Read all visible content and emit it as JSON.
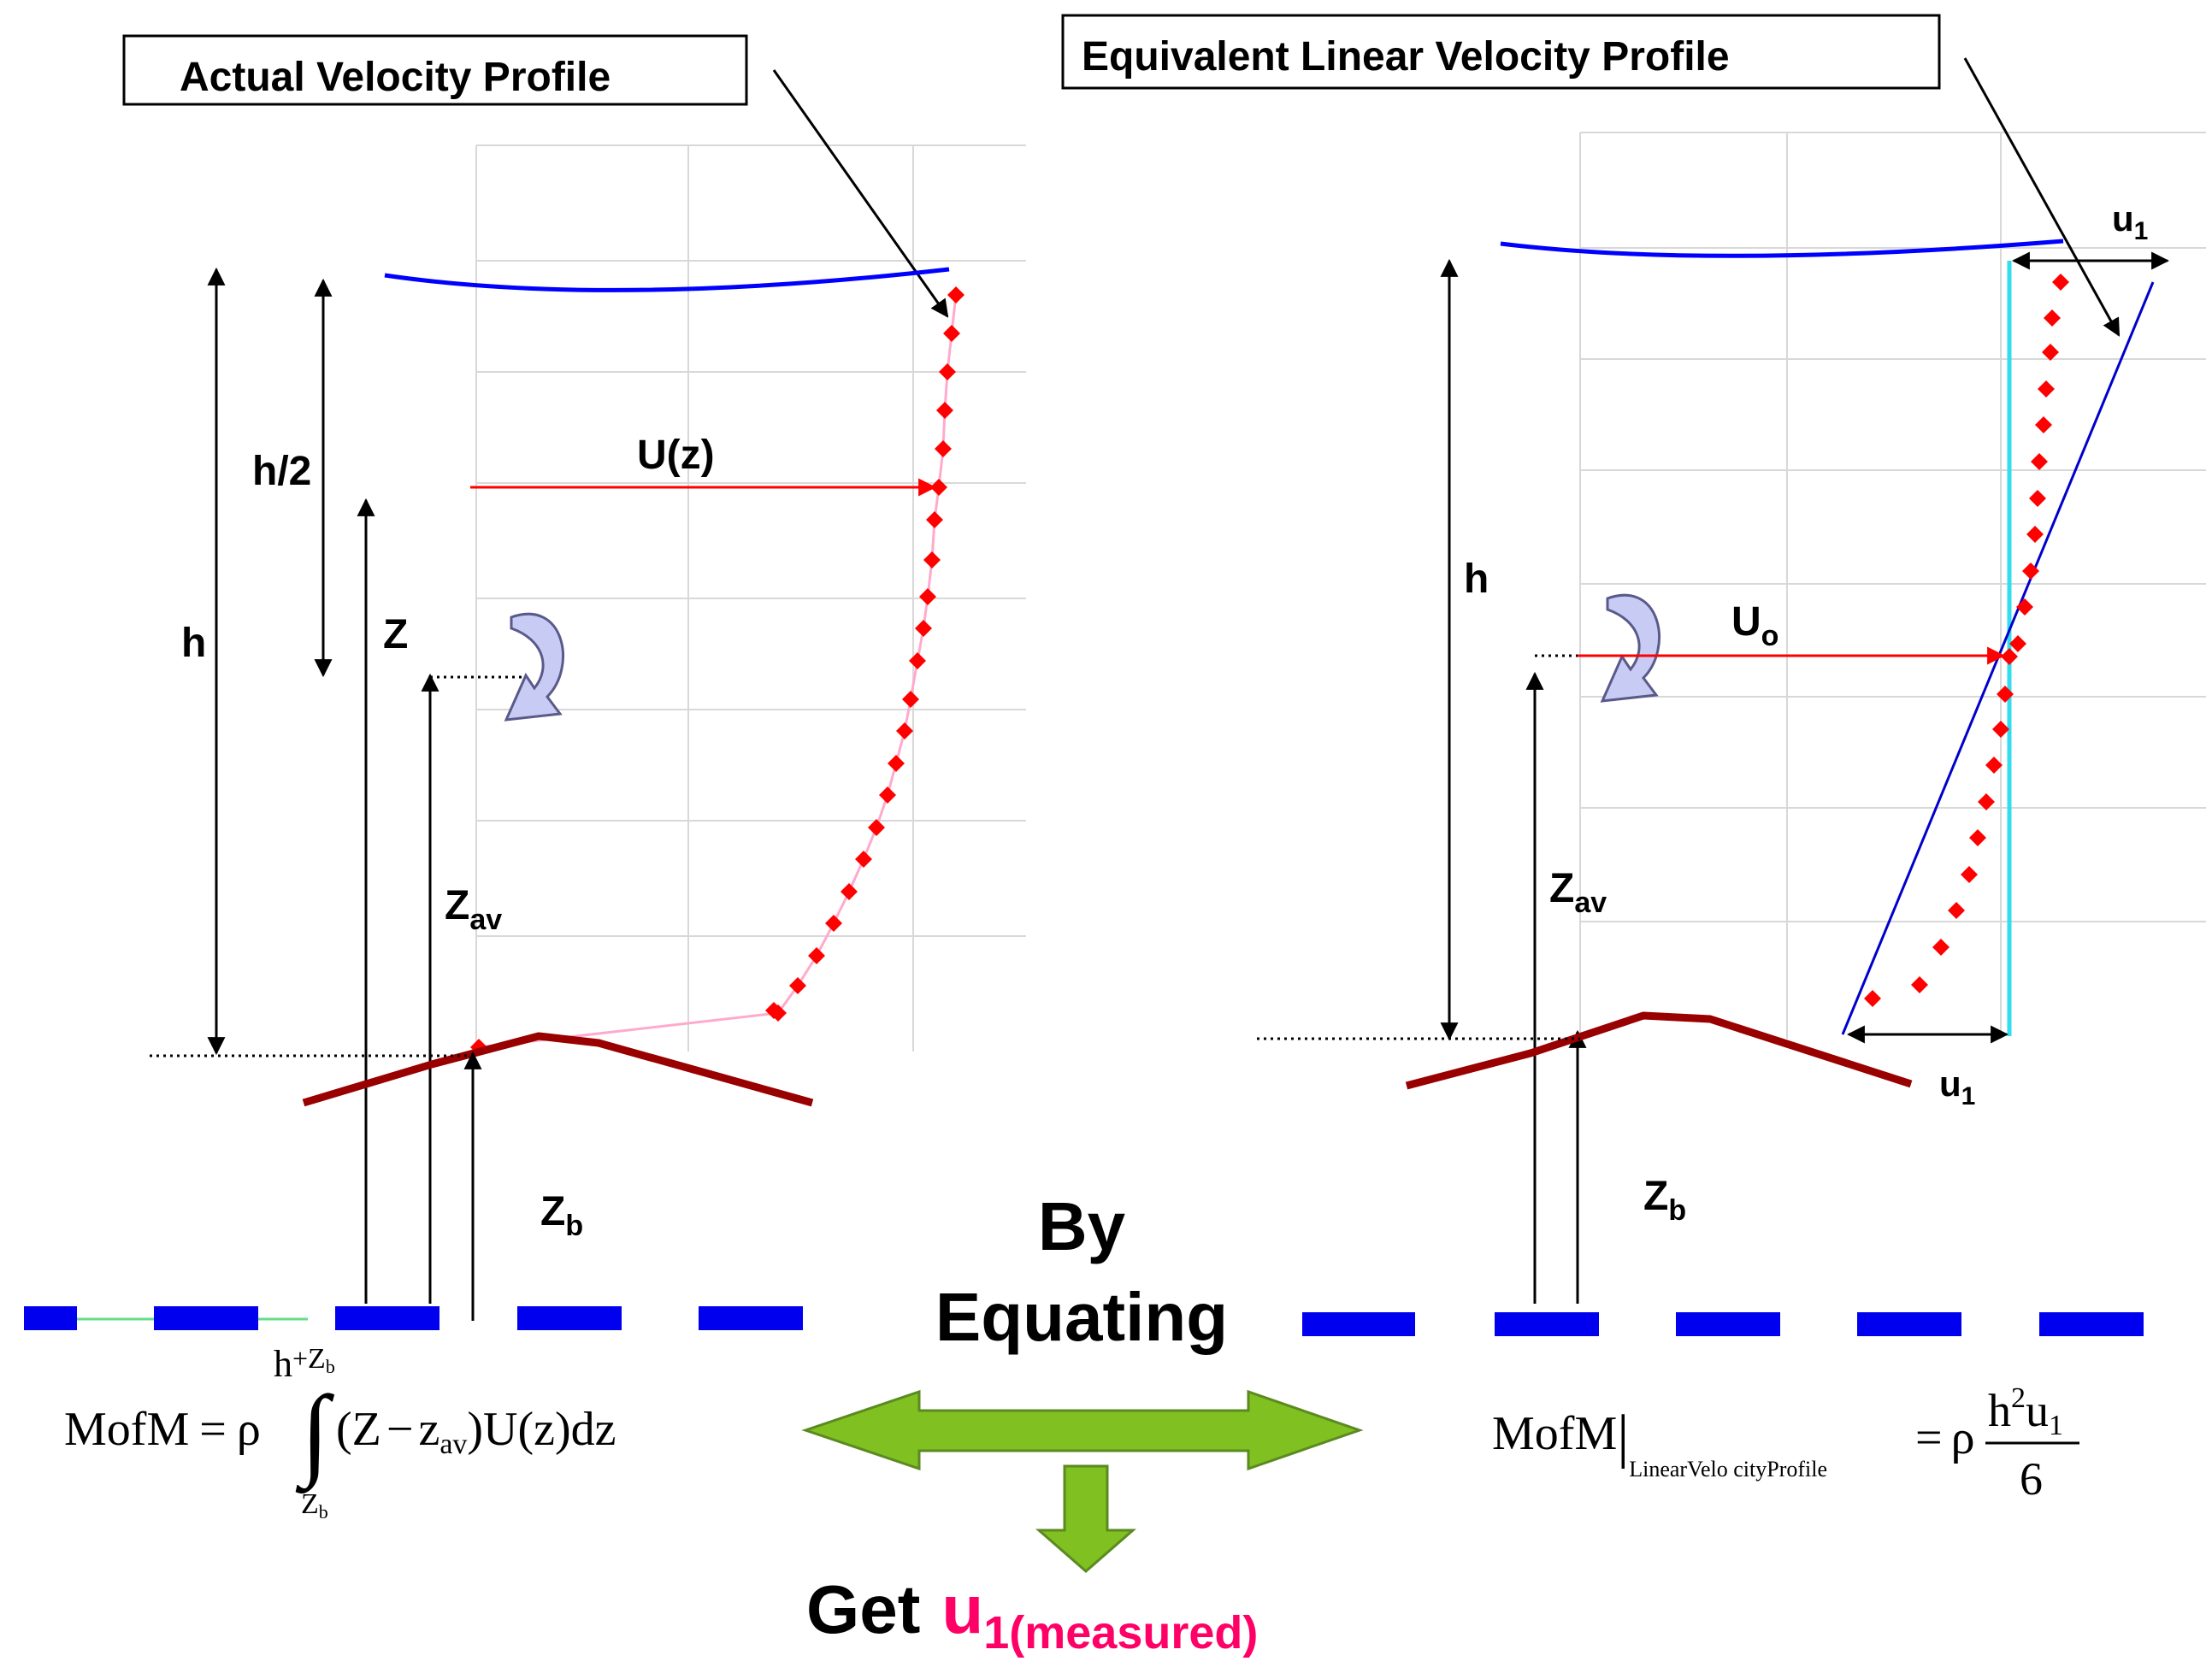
{
  "left_panel": {
    "title": "Actual Velocity Profile",
    "label_h": "h",
    "label_h_half": "h/2",
    "label_z": "Z",
    "label_z_av_main": "Z",
    "label_z_av_sub": "av",
    "label_uz": "U(z)",
    "label_zb_main": "Z",
    "label_zb_sub": "b",
    "profile_color": "#ff0000",
    "free_surface_color": "#0000ff",
    "bed_color": "#990000"
  },
  "right_panel": {
    "title": "Equivalent Linear Velocity Profile",
    "label_h": "h",
    "label_u0_main": "U",
    "label_u0_sub": "o",
    "label_u1_top_main": "u",
    "label_u1_top_sub": "1",
    "label_u1_bottom_main": "u",
    "label_u1_bottom_sub": "1",
    "label_z_av_main": "Z",
    "label_z_av_sub": "av",
    "label_zb_main": "Z",
    "label_zb_sub": "b",
    "mean_line_color": "#33ddee",
    "linear_profile_color": "#0000cc"
  },
  "center": {
    "by_label": "By",
    "equating_label": "Equating",
    "get_label": "Get",
    "u_main": "u",
    "u_sub": "1(measured)",
    "u_color": "#ff0066",
    "arrow_color": "#80c020"
  },
  "formula_left": {
    "lhs": "MofM",
    "eq": "=",
    "rho": "ρ",
    "upper_limit_main": "h",
    "upper_limit_plus": "+",
    "upper_limit_z": "Z",
    "upper_limit_z_sub": "b",
    "lower_limit_z": "Z",
    "lower_limit_z_sub": "b",
    "integral": "∫",
    "integrand_open": "(Z",
    "integrand_minus": "−",
    "integrand_z": "z",
    "integrand_z_sub": "av",
    "integrand_rest": ")U(z)dz"
  },
  "formula_right": {
    "lhs": "MofM",
    "bar": "|",
    "subscript": "LinearVelo cityProfile",
    "eq": "=",
    "rho": "ρ",
    "numerator_h": "h",
    "numerator_exp": "2",
    "numerator_u": "u",
    "numerator_u_sub": "1",
    "denominator": "6"
  }
}
